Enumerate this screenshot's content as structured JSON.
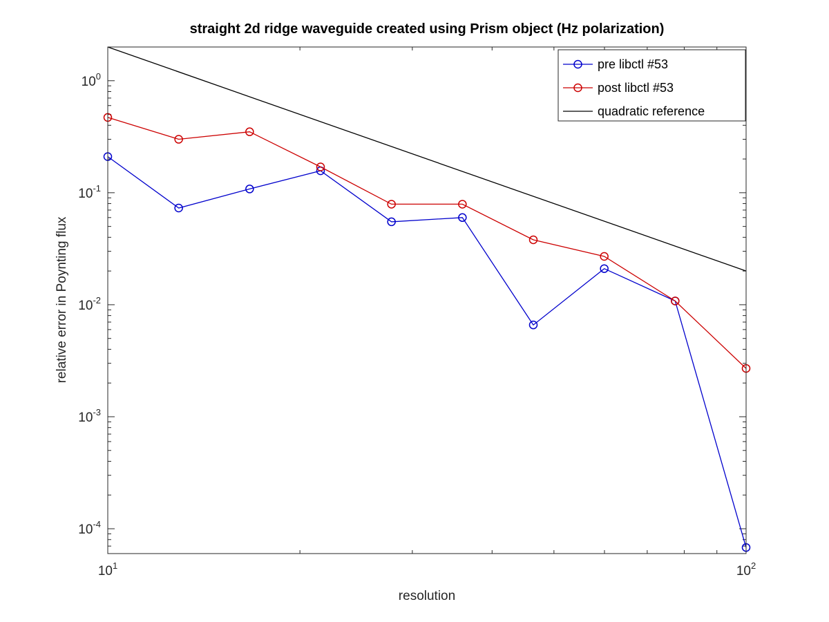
{
  "chart_data": {
    "type": "line",
    "title": "straight 2d ridge waveguide created using Prism object (Hz polarization)",
    "xlabel": "resolution",
    "ylabel": "relative error in Poynting flux",
    "xscale": "log",
    "yscale": "log",
    "xlim": [
      10,
      100
    ],
    "ylim": [
      6e-05,
      2.0
    ],
    "x_ticks": [
      {
        "base": "10",
        "exp": "1",
        "value": 10
      },
      {
        "base": "10",
        "exp": "2",
        "value": 100
      }
    ],
    "y_ticks": [
      {
        "base": "10",
        "exp": "-4",
        "value": 0.0001
      },
      {
        "base": "10",
        "exp": "-3",
        "value": 0.001
      },
      {
        "base": "10",
        "exp": "-2",
        "value": 0.01
      },
      {
        "base": "10",
        "exp": "-1",
        "value": 0.1
      },
      {
        "base": "10",
        "exp": "0",
        "value": 1
      }
    ],
    "grid": false,
    "legend": "top-right",
    "series": [
      {
        "name": "pre libctl #53",
        "color": "#0000cc",
        "marker": "circle",
        "x": [
          10,
          12.915,
          16.681,
          21.544,
          27.826,
          35.938,
          46.416,
          59.948,
          77.426,
          100
        ],
        "y": [
          0.21,
          0.073,
          0.108,
          0.157,
          0.055,
          0.06,
          0.0066,
          0.021,
          0.0108,
          6.8e-05
        ]
      },
      {
        "name": "post libctl #53",
        "color": "#cc0000",
        "marker": "circle",
        "x": [
          10,
          12.915,
          16.681,
          21.544,
          27.826,
          35.938,
          46.416,
          59.948,
          77.426,
          100
        ],
        "y": [
          0.47,
          0.3,
          0.35,
          0.17,
          0.079,
          0.079,
          0.038,
          0.027,
          0.0108,
          0.0027
        ]
      },
      {
        "name": "quadratic reference",
        "color": "#000000",
        "marker": "none",
        "x": [
          10,
          100
        ],
        "y": [
          2.0,
          0.02
        ]
      }
    ]
  }
}
